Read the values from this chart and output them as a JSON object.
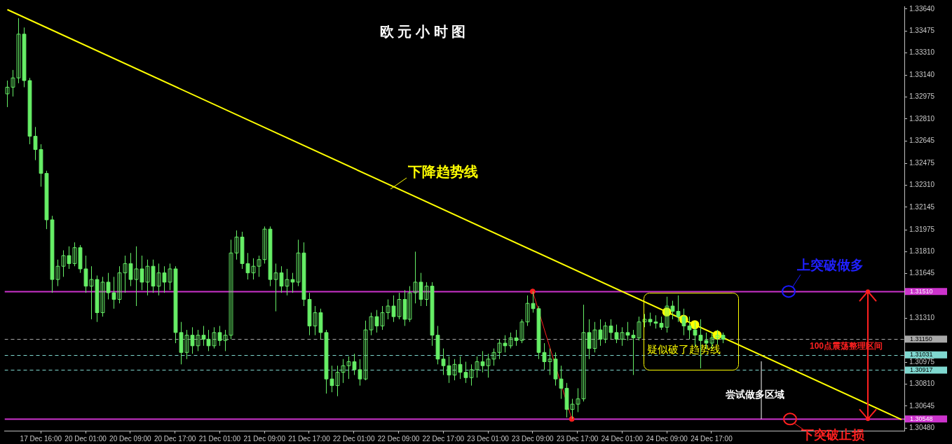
{
  "chart_data": {
    "type": "candlestick",
    "title": "欧 元 小 时 图",
    "color": "#66ee66",
    "categories": [
      null,
      null,
      null,
      null,
      null,
      null,
      "17 Dec 16:00",
      null,
      null,
      null,
      null,
      null,
      null,
      null,
      "20 Dec 01:00",
      null,
      null,
      null,
      null,
      null,
      null,
      null,
      "20 Dec 09:00",
      null,
      null,
      null,
      null,
      null,
      null,
      null,
      "20 Dec 17:00",
      null,
      null,
      null,
      null,
      null,
      null,
      null,
      "21 Dec 01:00",
      null,
      null,
      null,
      null,
      null,
      null,
      null,
      "21 Dec 09:00",
      null,
      null,
      null,
      null,
      null,
      null,
      null,
      "21 Dec 17:00",
      null,
      null,
      null,
      null,
      null,
      null,
      null,
      "22 Dec 01:00",
      null,
      null,
      null,
      null,
      null,
      null,
      null,
      "22 Dec 09:00",
      null,
      null,
      null,
      null,
      null,
      null,
      null,
      "22 Dec 17:00",
      null,
      null,
      null,
      null,
      null,
      null,
      null,
      "23 Dec 01:00",
      null,
      null,
      null,
      null,
      null,
      null,
      null,
      "23 Dec 09:00",
      null,
      null,
      null,
      null,
      null,
      null,
      null,
      "23 Dec 17:00",
      null,
      null,
      null,
      null,
      null,
      null,
      null,
      "24 Dec 01:00",
      null,
      null,
      null,
      null,
      null,
      null,
      null,
      "24 Dec 09:00",
      null,
      null,
      null,
      null,
      null,
      null,
      null,
      "24 Dec 17:00",
      null,
      null,
      null,
      null,
      null,
      null,
      null,
      null,
      null,
      null,
      null,
      null,
      null,
      null,
      null,
      null,
      null,
      null,
      null,
      null,
      null,
      null,
      null,
      null,
      null,
      null,
      null,
      null,
      null,
      null,
      null,
      null,
      null,
      null
    ],
    "ohlc": [
      [
        1.33,
        1.331,
        1.329,
        1.3305
      ],
      [
        1.3305,
        1.3318,
        1.3298,
        1.3312
      ],
      [
        1.3312,
        1.3357,
        1.3308,
        1.3345
      ],
      [
        1.3345,
        1.335,
        1.3305,
        1.331
      ],
      [
        1.331,
        1.3312,
        1.3262,
        1.3268
      ],
      [
        1.3268,
        1.3275,
        1.325,
        1.3258
      ],
      [
        1.3258,
        1.3262,
        1.323,
        1.324
      ],
      [
        1.324,
        1.3242,
        1.3198,
        1.3205
      ],
      [
        1.3205,
        1.3208,
        1.315,
        1.316
      ],
      [
        1.316,
        1.3175,
        1.3155,
        1.317
      ],
      [
        1.317,
        1.3182,
        1.3162,
        1.3178
      ],
      [
        1.3178,
        1.3185,
        1.3168,
        1.3172
      ],
      [
        1.3172,
        1.3188,
        1.317,
        1.3184
      ],
      [
        1.3184,
        1.3186,
        1.3165,
        1.3168
      ],
      [
        1.3168,
        1.3178,
        1.315,
        1.3155
      ],
      [
        1.3155,
        1.317,
        1.313,
        1.316
      ],
      [
        1.316,
        1.3163,
        1.3128,
        1.3135
      ],
      [
        1.3135,
        1.3162,
        1.3132,
        1.3158
      ],
      [
        1.3158,
        1.3165,
        1.3145,
        1.315
      ],
      [
        1.315,
        1.3162,
        1.3138,
        1.3145
      ],
      [
        1.3145,
        1.317,
        1.3142,
        1.3165
      ],
      [
        1.3165,
        1.3178,
        1.315,
        1.3172
      ],
      [
        1.3172,
        1.318,
        1.3155,
        1.316
      ],
      [
        1.316,
        1.3185,
        1.314,
        1.3168
      ],
      [
        1.3168,
        1.3178,
        1.3152,
        1.3158
      ],
      [
        1.3158,
        1.3175,
        1.3148,
        1.317
      ],
      [
        1.317,
        1.3175,
        1.315,
        1.3155
      ],
      [
        1.3155,
        1.3172,
        1.3148,
        1.3165
      ],
      [
        1.3165,
        1.317,
        1.315,
        1.3158
      ],
      [
        1.3158,
        1.3172,
        1.3152,
        1.3168
      ],
      [
        1.3168,
        1.317,
        1.3112,
        1.312
      ],
      [
        1.312,
        1.3128,
        1.3096,
        1.3105
      ],
      [
        1.3105,
        1.3122,
        1.31,
        1.3118
      ],
      [
        1.3118,
        1.3124,
        1.3104,
        1.311
      ],
      [
        1.311,
        1.3122,
        1.3106,
        1.3118
      ],
      [
        1.3118,
        1.3125,
        1.311,
        1.3115
      ],
      [
        1.3115,
        1.3122,
        1.3106,
        1.311
      ],
      [
        1.311,
        1.3124,
        1.3108,
        1.312
      ],
      [
        1.312,
        1.3125,
        1.311,
        1.3114
      ],
      [
        1.3114,
        1.3122,
        1.3106,
        1.3118
      ],
      [
        1.3118,
        1.319,
        1.3115,
        1.318
      ],
      [
        1.318,
        1.3197,
        1.3175,
        1.3192
      ],
      [
        1.3192,
        1.3196,
        1.3168,
        1.3172
      ],
      [
        1.3172,
        1.318,
        1.316,
        1.3165
      ],
      [
        1.3165,
        1.3176,
        1.316,
        1.317
      ],
      [
        1.317,
        1.3178,
        1.3162,
        1.3175
      ],
      [
        1.3175,
        1.32,
        1.3172,
        1.3198
      ],
      [
        1.3198,
        1.32,
        1.3155,
        1.316
      ],
      [
        1.316,
        1.3172,
        1.3136,
        1.3165
      ],
      [
        1.3165,
        1.317,
        1.315,
        1.3155
      ],
      [
        1.3155,
        1.3168,
        1.3148,
        1.316
      ],
      [
        1.316,
        1.3165,
        1.315,
        1.3158
      ],
      [
        1.3158,
        1.319,
        1.3155,
        1.318
      ],
      [
        1.318,
        1.3188,
        1.314,
        1.3145
      ],
      [
        1.3145,
        1.315,
        1.3118,
        1.3125
      ],
      [
        1.3125,
        1.314,
        1.3118,
        1.3135
      ],
      [
        1.3135,
        1.3138,
        1.3115,
        1.312
      ],
      [
        1.312,
        1.3122,
        1.3074,
        1.3085
      ],
      [
        1.3085,
        1.3095,
        1.3075,
        1.308
      ],
      [
        1.308,
        1.3095,
        1.3072,
        1.309
      ],
      [
        1.309,
        1.31,
        1.3082,
        1.3095
      ],
      [
        1.3095,
        1.3102,
        1.3085,
        1.3098
      ],
      [
        1.3098,
        1.3104,
        1.3088,
        1.3092
      ],
      [
        1.3092,
        1.31,
        1.308,
        1.3085
      ],
      [
        1.3085,
        1.3129,
        1.3084,
        1.3122
      ],
      [
        1.3122,
        1.3135,
        1.3118,
        1.3132
      ],
      [
        1.3132,
        1.3137,
        1.312,
        1.3125
      ],
      [
        1.3125,
        1.314,
        1.3122,
        1.3135
      ],
      [
        1.3135,
        1.3145,
        1.313,
        1.314
      ],
      [
        1.314,
        1.3148,
        1.3128,
        1.3132
      ],
      [
        1.3132,
        1.315,
        1.313,
        1.3145
      ],
      [
        1.3145,
        1.3152,
        1.3125,
        1.313
      ],
      [
        1.313,
        1.3155,
        1.3128,
        1.315
      ],
      [
        1.315,
        1.3181,
        1.3142,
        1.3158
      ],
      [
        1.3158,
        1.3165,
        1.314,
        1.3145
      ],
      [
        1.3145,
        1.3158,
        1.314,
        1.3155
      ],
      [
        1.3155,
        1.3158,
        1.311,
        1.3118
      ],
      [
        1.3118,
        1.3125,
        1.3096,
        1.31
      ],
      [
        1.31,
        1.3108,
        1.3088,
        1.3095
      ],
      [
        1.3095,
        1.3102,
        1.3082,
        1.3088
      ],
      [
        1.3088,
        1.31,
        1.3084,
        1.3096
      ],
      [
        1.3096,
        1.3102,
        1.3085,
        1.309
      ],
      [
        1.309,
        1.3098,
        1.3082,
        1.3086
      ],
      [
        1.3086,
        1.3096,
        1.308,
        1.3092
      ],
      [
        1.3092,
        1.3102,
        1.3086,
        1.3098
      ],
      [
        1.3098,
        1.3106,
        1.309,
        1.3095
      ],
      [
        1.3095,
        1.3104,
        1.3086,
        1.31
      ],
      [
        1.31,
        1.3108,
        1.3095,
        1.3105
      ],
      [
        1.3105,
        1.3115,
        1.31,
        1.3112
      ],
      [
        1.3112,
        1.3118,
        1.3105,
        1.311
      ],
      [
        1.311,
        1.312,
        1.3108,
        1.3116
      ],
      [
        1.3116,
        1.3122,
        1.311,
        1.3114
      ],
      [
        1.3114,
        1.313,
        1.3112,
        1.3128
      ],
      [
        1.3128,
        1.3148,
        1.3125,
        1.3142
      ],
      [
        1.3142,
        1.3151,
        1.3135,
        1.3138
      ],
      [
        1.3138,
        1.314,
        1.31,
        1.3105
      ],
      [
        1.3105,
        1.3112,
        1.3092,
        1.3098
      ],
      [
        1.3098,
        1.3108,
        1.3088,
        1.31
      ],
      [
        1.31,
        1.3105,
        1.308,
        1.3085
      ],
      [
        1.3085,
        1.3095,
        1.307,
        1.3078
      ],
      [
        1.3078,
        1.3082,
        1.3056,
        1.3062
      ],
      [
        1.3062,
        1.307,
        1.3055,
        1.3066
      ],
      [
        1.3066,
        1.3078,
        1.306,
        1.307
      ],
      [
        1.307,
        1.3141,
        1.3068,
        1.312
      ],
      [
        1.312,
        1.313,
        1.31,
        1.3108
      ],
      [
        1.3108,
        1.3128,
        1.3105,
        1.3122
      ],
      [
        1.3122,
        1.313,
        1.311,
        1.3115
      ],
      [
        1.3115,
        1.3128,
        1.3112,
        1.3125
      ],
      [
        1.3125,
        1.313,
        1.3115,
        1.312
      ],
      [
        1.312,
        1.3126,
        1.3112,
        1.3115
      ],
      [
        1.3115,
        1.3124,
        1.311,
        1.312
      ],
      [
        1.312,
        1.3128,
        1.3114,
        1.3118
      ],
      [
        1.3118,
        1.3122,
        1.3088,
        1.3116
      ],
      [
        1.3116,
        1.3132,
        1.3114,
        1.3128
      ],
      [
        1.3128,
        1.3134,
        1.3124,
        1.313
      ],
      [
        1.313,
        1.3135,
        1.3125,
        1.3128
      ],
      [
        1.3128,
        1.3133,
        1.3123,
        1.3127
      ],
      [
        1.3127,
        1.3132,
        1.3122,
        1.3124
      ],
      [
        1.3124,
        1.3147,
        1.312,
        1.314
      ],
      [
        1.314,
        1.3144,
        1.313,
        1.3136
      ],
      [
        1.3136,
        1.3148,
        1.3128,
        1.3132
      ],
      [
        1.3132,
        1.3138,
        1.3118,
        1.3125
      ],
      [
        1.3125,
        1.3132,
        1.3115,
        1.3122
      ],
      [
        1.3122,
        1.3128,
        1.311,
        1.3118
      ],
      [
        1.3118,
        1.313,
        1.3093,
        1.3114
      ],
      [
        1.3114,
        1.312,
        1.3108,
        1.3112
      ],
      [
        1.3112,
        1.312,
        1.3108,
        1.3116
      ],
      [
        1.3116,
        1.3122,
        1.3111,
        1.3118
      ],
      [
        1.3118,
        1.312,
        1.3112,
        1.3115
      ],
      null,
      null,
      null,
      null,
      null,
      null,
      null,
      null,
      null,
      null,
      null,
      null,
      null,
      null,
      null,
      null,
      null,
      null,
      null,
      null,
      null,
      null,
      null,
      null,
      null,
      null,
      null,
      null,
      null,
      null,
      null,
      null
    ],
    "series": [
      {
        "type": "line",
        "color": "#ffff00",
        "values": [
          1.33635,
          null,
          null,
          null,
          null,
          null,
          null,
          null,
          null,
          null,
          null,
          null,
          null,
          null,
          null,
          null,
          null,
          null,
          null,
          null,
          null,
          null,
          null,
          null,
          null,
          null,
          null,
          null,
          null,
          null,
          null,
          null,
          null,
          null,
          null,
          null,
          null,
          null,
          null,
          null,
          null,
          null,
          null,
          null,
          null,
          null,
          null,
          null,
          null,
          null,
          null,
          null,
          null,
          null,
          null,
          null,
          null,
          null,
          null,
          null,
          null,
          null,
          null,
          null,
          null,
          null,
          null,
          null,
          null,
          null,
          null,
          null,
          null,
          null,
          null,
          null,
          null,
          null,
          null,
          null,
          null,
          null,
          null,
          null,
          null,
          null,
          null,
          null,
          null,
          null,
          null,
          null,
          null,
          null,
          null,
          null,
          null,
          null,
          null,
          null,
          null,
          null,
          null,
          null,
          null,
          null,
          null,
          null,
          null,
          null,
          null,
          null,
          null,
          null,
          null,
          null,
          null,
          null,
          null,
          null,
          null,
          null,
          null,
          null,
          null,
          null,
          null,
          null,
          null,
          null,
          null,
          null,
          null,
          null,
          null,
          null,
          null,
          null,
          null,
          null,
          null,
          null,
          null,
          null,
          null,
          null,
          null,
          null,
          null,
          null,
          null,
          null,
          null,
          null,
          null,
          null,
          null,
          null,
          null,
          null,
          1.30544
        ]
      },
      {
        "type": "line",
        "color": "#ff2020",
        "marker": "circle",
        "values": [
          null,
          null,
          null,
          null,
          null,
          null,
          null,
          null,
          null,
          null,
          null,
          null,
          null,
          null,
          null,
          null,
          null,
          null,
          null,
          null,
          null,
          null,
          null,
          null,
          null,
          null,
          null,
          null,
          null,
          null,
          null,
          null,
          null,
          null,
          null,
          null,
          null,
          null,
          null,
          null,
          null,
          null,
          null,
          null,
          null,
          null,
          null,
          null,
          null,
          null,
          null,
          null,
          null,
          null,
          null,
          null,
          null,
          null,
          null,
          null,
          null,
          null,
          null,
          null,
          null,
          null,
          null,
          null,
          null,
          null,
          null,
          null,
          null,
          null,
          null,
          null,
          null,
          null,
          null,
          null,
          null,
          null,
          null,
          null,
          null,
          null,
          null,
          null,
          null,
          null,
          null,
          null,
          null,
          null,
          1.3151,
          null,
          null,
          null,
          null,
          null,
          null,
          1.30548,
          null,
          null,
          null,
          null,
          null,
          null,
          null,
          null,
          null,
          null,
          null,
          null,
          null,
          null,
          null,
          null,
          null,
          null,
          null,
          null,
          null,
          null,
          null,
          null,
          null,
          null,
          null,
          null,
          null,
          null,
          null,
          null,
          null,
          null,
          null,
          null,
          null,
          null,
          null,
          null,
          null,
          null,
          null,
          null,
          null,
          null,
          null,
          null,
          null,
          null,
          null,
          null,
          null,
          null,
          null,
          null,
          null,
          null,
          null
        ]
      },
      {
        "type": "scatter",
        "color": "#ffff00",
        "marker": "circle",
        "values": [
          null,
          null,
          null,
          null,
          null,
          null,
          null,
          null,
          null,
          null,
          null,
          null,
          null,
          null,
          null,
          null,
          null,
          null,
          null,
          null,
          null,
          null,
          null,
          null,
          null,
          null,
          null,
          null,
          null,
          null,
          null,
          null,
          null,
          null,
          null,
          null,
          null,
          null,
          null,
          null,
          null,
          null,
          null,
          null,
          null,
          null,
          null,
          null,
          null,
          null,
          null,
          null,
          null,
          null,
          null,
          null,
          null,
          null,
          null,
          null,
          null,
          null,
          null,
          null,
          null,
          null,
          null,
          null,
          null,
          null,
          null,
          null,
          null,
          null,
          null,
          null,
          null,
          null,
          null,
          null,
          null,
          null,
          null,
          null,
          null,
          null,
          null,
          null,
          null,
          null,
          null,
          null,
          null,
          null,
          null,
          null,
          null,
          null,
          null,
          null,
          null,
          null,
          null,
          null,
          null,
          null,
          null,
          null,
          null,
          null,
          null,
          null,
          null,
          null,
          null,
          null,
          null,
          null,
          1.31355,
          null,
          null,
          1.313,
          null,
          1.31259,
          null,
          null,
          null,
          1.31181,
          null,
          null,
          null,
          null,
          null,
          null,
          null,
          null,
          null,
          null,
          null,
          null,
          null,
          null,
          null,
          null,
          null,
          null,
          null,
          null,
          null,
          null,
          null,
          null,
          null,
          null,
          null,
          null,
          null,
          null,
          null,
          null,
          null
        ]
      }
    ],
    "ylim": [
      1.3046,
      1.3366
    ],
    "yticks": [
      {
        "value": 1.3364,
        "label": "1.33640"
      },
      1.33475,
      {
        "value": 1.3331,
        "label": "1.33310"
      },
      {
        "value": 1.3314,
        "label": "1.33140"
      },
      1.32975,
      {
        "value": 1.3281,
        "label": "1.32810"
      },
      1.32645,
      1.32475,
      {
        "value": 1.3231,
        "label": "1.32310"
      },
      1.32145,
      1.31975,
      {
        "value": 1.3181,
        "label": "1.31810"
      },
      1.31645,
      {
        "value": 1.3131,
        "label": "1.31310"
      },
      1.30975,
      {
        "value": 1.3081,
        "label": "1.30810"
      },
      1.30645,
      {
        "value": 1.3048,
        "label": "1.30480"
      }
    ],
    "ref_lines": [
      {
        "axis": "y",
        "value": 1.3151,
        "label": "1.31510",
        "color": "#cc33cc"
      },
      {
        "axis": "y",
        "value": 1.30548,
        "label": "1.30548",
        "color": "#cc33cc"
      },
      {
        "axis": "y",
        "value": 1.3115,
        "label": "1.31150",
        "color": "#a8a8a8",
        "line_style": "dashed"
      },
      {
        "axis": "y",
        "value": 1.31031,
        "label": "1.31031",
        "color": "#7fd8d0",
        "line_style": "dashed"
      },
      {
        "axis": "y",
        "value": 1.30917,
        "label": "1.30917",
        "color": "#7fd8d0",
        "line_style": "dashed"
      }
    ],
    "annotations": [
      "下降趋势线",
      "疑似破了趋势线",
      {
        "text": "上突破做多",
        "y": 1.3151
      },
      "100点震荡整理区间",
      "尝试做多区域",
      {
        "text": "下突破止损",
        "y": 1.30548
      }
    ]
  }
}
